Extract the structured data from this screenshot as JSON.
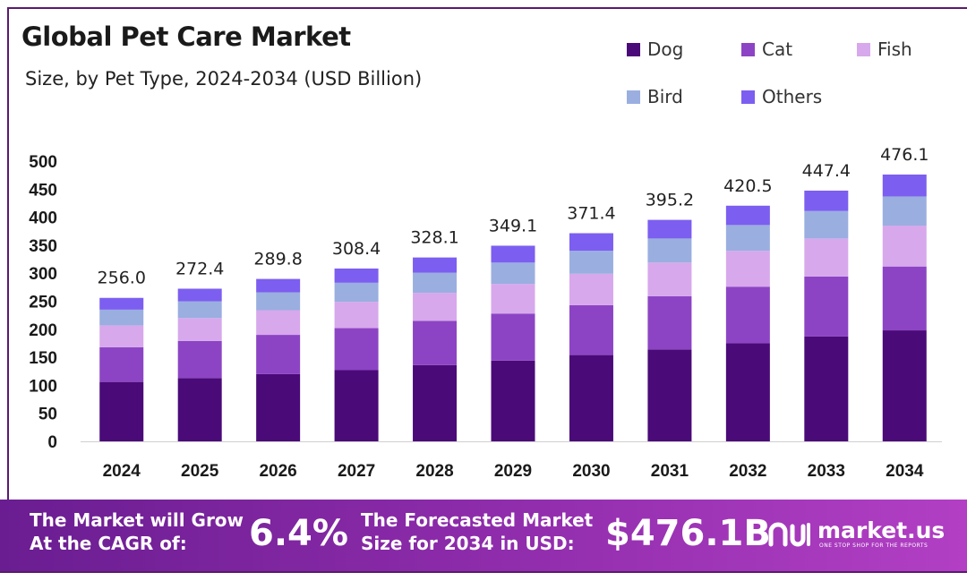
{
  "title": "Global Pet Care Market",
  "subtitle": "Size, by Pet Type, 2024-2034 (USD Billion)",
  "legend": [
    {
      "label": "Dog",
      "color": "#4a0a78"
    },
    {
      "label": "Cat",
      "color": "#8c44c4"
    },
    {
      "label": "Fish",
      "color": "#d7a8ec"
    },
    {
      "label": "Bird",
      "color": "#9aaee0"
    },
    {
      "label": "Others",
      "color": "#7c5ef0"
    }
  ],
  "chart_data": {
    "type": "bar",
    "stacked": true,
    "categories": [
      "2024",
      "2025",
      "2026",
      "2027",
      "2028",
      "2029",
      "2030",
      "2031",
      "2032",
      "2033",
      "2034"
    ],
    "series": [
      {
        "name": "Dog",
        "values": [
          106,
          113,
          120,
          127,
          136,
          144,
          154,
          164,
          175,
          187,
          198
        ]
      },
      {
        "name": "Cat",
        "values": [
          62,
          66,
          70,
          75,
          79,
          84,
          89,
          95,
          101,
          107,
          114
        ]
      },
      {
        "name": "Fish",
        "values": [
          39,
          41,
          44,
          47,
          50,
          53,
          56,
          60,
          64,
          68,
          73
        ]
      },
      {
        "name": "Bird",
        "values": [
          28,
          30,
          32,
          34,
          36,
          38,
          41,
          43,
          46,
          49,
          52
        ]
      },
      {
        "name": "Others",
        "values": [
          21,
          22.4,
          23.8,
          25.4,
          27.1,
          30.1,
          31.4,
          33.2,
          34.5,
          36.4,
          39.1
        ]
      }
    ],
    "totals": [
      256.0,
      272.4,
      289.8,
      308.4,
      328.1,
      349.1,
      371.4,
      395.2,
      420.5,
      447.4,
      476.1
    ],
    "total_labels": [
      "256.0",
      "272.4",
      "289.8",
      "308.4",
      "328.1",
      "349.1",
      "371.4",
      "395.2",
      "420.5",
      "447.4",
      "476.1"
    ],
    "yticks": [
      0,
      50,
      100,
      150,
      200,
      250,
      300,
      350,
      400,
      450,
      500
    ],
    "ylim": [
      0,
      500
    ],
    "grid": false,
    "legend_position": "top-right"
  },
  "banner": {
    "cagr_text_line1": "The Market will Grow",
    "cagr_text_line2": "At the CAGR of:",
    "cagr_value": "6.4%",
    "forecast_text_line1": "The Forecasted Market",
    "forecast_text_line2": "Size for 2034 in USD:",
    "forecast_value": "$476.1B",
    "logo_text": "market.us",
    "logo_tagline": "ONE STOP SHOP FOR THE REPORTS"
  }
}
